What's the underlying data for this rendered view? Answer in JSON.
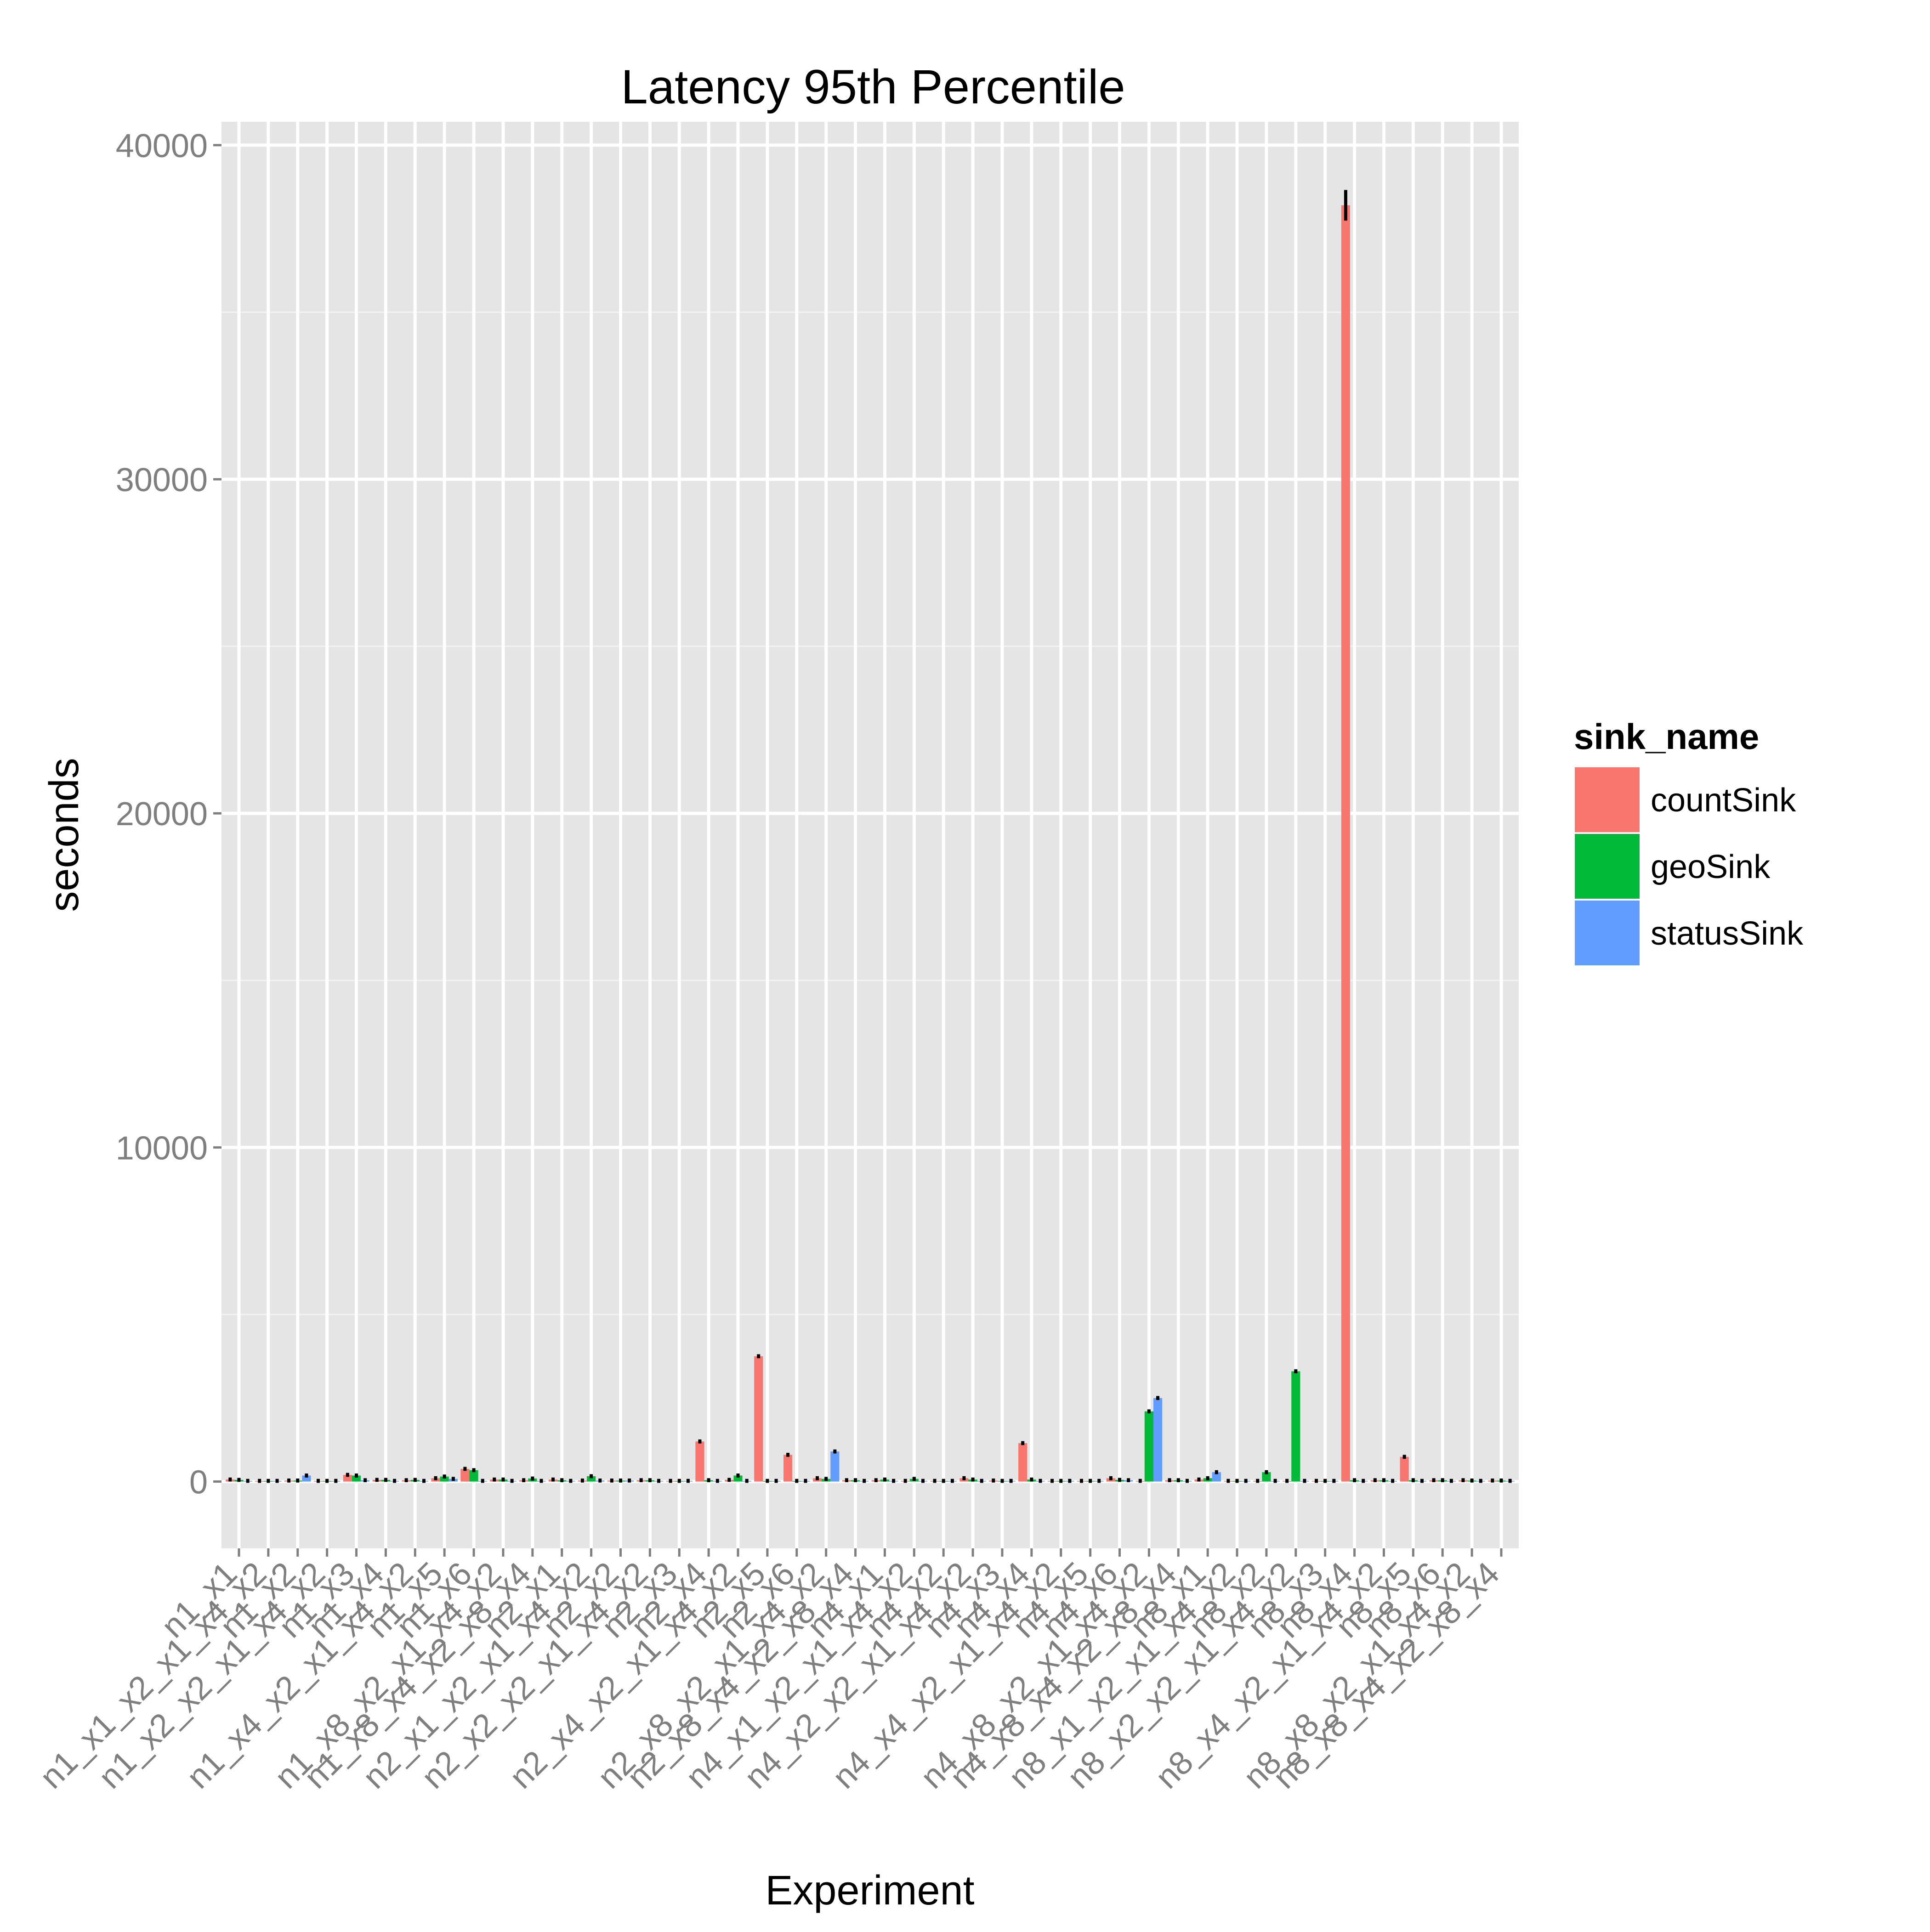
{
  "chart_data": {
    "type": "bar",
    "title": "Latency 95th Percentile",
    "xlabel": "Experiment",
    "ylabel": "seconds",
    "ylim": [
      -2000,
      40700
    ],
    "yticks": [
      0,
      10000,
      20000,
      30000,
      40000
    ],
    "grid": true,
    "legend": {
      "title": "sink_name",
      "position": "right"
    },
    "series": [
      {
        "name": "countSink",
        "color": "#F8766D"
      },
      {
        "name": "geoSink",
        "color": "#00BA38"
      },
      {
        "name": "statusSink",
        "color": "#619CFF"
      }
    ],
    "categories": [
      "n1_x1",
      "n1_x1_x2_x1_x4_x2",
      "n1_x2",
      "n1_x2_x2_x1_x4_x2",
      "n1_x3",
      "n1_x4",
      "n1_x4_x2_x1_x4_x2",
      "n1_x5",
      "n1_x6",
      "n1_x8_x2_x1_x4_x2",
      "n1_x8_x4_x2_x8_x4",
      "n2_x1",
      "n2_x1_x2_x1_x4_x2",
      "n2_x2",
      "n2_x2_x2_x1_x4_x2",
      "n2_x3",
      "n2_x4",
      "n2_x4_x2_x1_x4_x2",
      "n2_x5",
      "n2_x6",
      "n2_x8_x2_x1_x4_x2",
      "n2_x8_x4_x2_x8_x4",
      "n4_x1",
      "n4_x1_x2_x1_x4_x2",
      "n4_x2",
      "n4_x2_x2_x1_x4_x2",
      "n4_x3",
      "n4_x4",
      "n4_x4_x2_x1_x4_x2",
      "n4_x5",
      "n4_x6",
      "n4_x8_x2_x1_x4_x2",
      "n4_x8_x4_x2_x8_x4",
      "n8_x1",
      "n8_x1_x2_x1_x4_x2",
      "n8_x2",
      "n8_x2_x2_x1_x4_x2",
      "n8_x3",
      "n8_x4",
      "n8_x4_x2_x1_x4_x2",
      "n8_x5",
      "n8_x6",
      "n8_x8_x2_x1_x4_x2",
      "n8_x8_x4_x2_x8_x4"
    ],
    "values": [
      [
        60,
        50,
        20
      ],
      [
        20,
        20,
        20
      ],
      [
        30,
        30,
        180
      ],
      [
        20,
        20,
        20
      ],
      [
        200,
        180,
        40
      ],
      [
        50,
        50,
        20
      ],
      [
        40,
        50,
        20
      ],
      [
        100,
        150,
        80
      ],
      [
        380,
        340,
        20
      ],
      [
        60,
        60,
        20
      ],
      [
        40,
        90,
        20
      ],
      [
        60,
        40,
        20
      ],
      [
        30,
        160,
        30
      ],
      [
        30,
        30,
        30
      ],
      [
        40,
        40,
        20
      ],
      [
        20,
        20,
        20
      ],
      [
        1200,
        40,
        20
      ],
      [
        50,
        180,
        20
      ],
      [
        3750,
        20,
        20
      ],
      [
        800,
        20,
        20
      ],
      [
        100,
        80,
        900
      ],
      [
        40,
        40,
        20
      ],
      [
        40,
        60,
        20
      ],
      [
        20,
        80,
        20
      ],
      [
        20,
        20,
        20
      ],
      [
        100,
        60,
        20
      ],
      [
        30,
        20,
        20
      ],
      [
        1150,
        60,
        20
      ],
      [
        20,
        20,
        20
      ],
      [
        20,
        20,
        20
      ],
      [
        100,
        50,
        40
      ],
      [
        20,
        2100,
        2500
      ],
      [
        40,
        40,
        20
      ],
      [
        60,
        100,
        280
      ],
      [
        20,
        20,
        20
      ],
      [
        20,
        280,
        20
      ],
      [
        20,
        3300,
        20
      ],
      [
        20,
        20,
        20
      ],
      [
        38200,
        40,
        20
      ],
      [
        40,
        40,
        20
      ],
      [
        740,
        40,
        20
      ],
      [
        40,
        40,
        20
      ],
      [
        40,
        30,
        20
      ],
      [
        30,
        30,
        20
      ]
    ]
  }
}
